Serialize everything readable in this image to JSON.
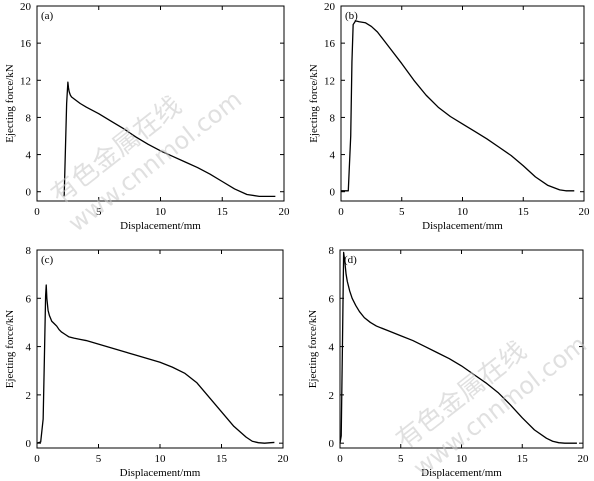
{
  "watermark": {
    "cn_text": "有色金属在线",
    "url_text": "www.cnnmol.com"
  },
  "chart_data": [
    {
      "type": "line",
      "panel": "(a)",
      "xlabel": "Displacement/mm",
      "ylabel": "Ejecting force/kN",
      "xlim": [
        0,
        20
      ],
      "ylim": [
        -1,
        20
      ],
      "xticks": [
        "0",
        "5",
        "10",
        "15",
        "20"
      ],
      "yticks": [
        "0",
        "4",
        "8",
        "12",
        "16",
        "20"
      ],
      "series": [
        {
          "x": [
            2.2,
            2.3,
            2.4,
            2.5,
            2.55,
            2.6,
            2.7,
            2.8,
            3.0,
            3.5,
            4,
            5,
            6,
            7,
            8,
            9,
            10,
            11,
            12,
            13,
            14,
            15,
            16,
            17,
            18,
            19,
            19.3
          ],
          "y": [
            -0.5,
            4.5,
            9.5,
            11.8,
            11.2,
            10.8,
            10.4,
            10.2,
            10.0,
            9.5,
            9.1,
            8.4,
            7.6,
            6.8,
            5.9,
            5.1,
            4.4,
            3.8,
            3.2,
            2.6,
            1.9,
            1.1,
            0.3,
            -0.3,
            -0.5,
            -0.5,
            -0.5
          ]
        }
      ]
    },
    {
      "type": "line",
      "panel": "(b)",
      "xlabel": "Displacement/mm",
      "ylabel": "Ejecting force/kN",
      "xlim": [
        0,
        20
      ],
      "ylim": [
        -1,
        20
      ],
      "xticks": [
        "0",
        "5",
        "10",
        "15",
        "20"
      ],
      "yticks": [
        "0",
        "4",
        "8",
        "12",
        "16",
        "20"
      ],
      "series": [
        {
          "x": [
            0,
            0.6,
            0.8,
            0.9,
            1.0,
            1.2,
            1.5,
            2.0,
            2.5,
            3,
            4,
            5,
            6,
            7,
            8,
            9,
            10,
            11,
            12,
            13,
            14,
            15,
            16,
            17,
            18,
            18.5,
            19.0,
            19.2
          ],
          "y": [
            0.1,
            0.1,
            6.0,
            14.0,
            18.0,
            18.4,
            18.3,
            18.2,
            17.8,
            17.2,
            15.5,
            13.8,
            12.0,
            10.4,
            9.1,
            8.1,
            7.3,
            6.5,
            5.7,
            4.8,
            3.9,
            2.8,
            1.6,
            0.7,
            0.2,
            0.1,
            0.1,
            0.1
          ]
        }
      ]
    },
    {
      "type": "line",
      "panel": "(c)",
      "xlabel": "Displacement/mm",
      "ylabel": "Ejecting force/kN",
      "xlim": [
        0,
        20
      ],
      "ylim": [
        -0.2,
        8
      ],
      "xticks": [
        "0",
        "5",
        "10",
        "15",
        "20"
      ],
      "yticks": [
        "0",
        "2",
        "4",
        "6",
        "8"
      ],
      "series": [
        {
          "x": [
            0,
            0.3,
            0.5,
            0.6,
            0.7,
            0.75,
            0.8,
            0.9,
            1.0,
            1.2,
            1.4,
            1.6,
            1.8,
            2.0,
            2.3,
            2.6,
            3.0,
            3.5,
            4,
            5,
            6,
            7,
            8,
            9,
            10,
            11,
            12,
            13,
            14,
            15,
            16,
            17,
            17.5,
            18,
            18.5,
            19,
            19.3
          ],
          "y": [
            0,
            0.05,
            1.0,
            3.5,
            6.1,
            6.55,
            6.0,
            5.5,
            5.3,
            5.05,
            4.95,
            4.85,
            4.7,
            4.6,
            4.5,
            4.4,
            4.35,
            4.3,
            4.25,
            4.1,
            3.95,
            3.8,
            3.65,
            3.5,
            3.35,
            3.15,
            2.9,
            2.5,
            1.9,
            1.3,
            0.7,
            0.25,
            0.08,
            0.02,
            0.0,
            0.02,
            0.03
          ]
        }
      ]
    },
    {
      "type": "line",
      "panel": "(d)",
      "xlabel": "Displacement/mm",
      "ylabel": "Ejecting force/kN",
      "xlim": [
        0,
        20
      ],
      "ylim": [
        -0.2,
        8
      ],
      "xticks": [
        "0",
        "5",
        "10",
        "15",
        "20"
      ],
      "yticks": [
        "0",
        "2",
        "4",
        "6",
        "8"
      ],
      "series": [
        {
          "x": [
            0,
            0.1,
            0.2,
            0.3,
            0.4,
            0.5,
            0.6,
            0.8,
            1.0,
            1.3,
            1.6,
            2.0,
            2.5,
            3,
            4,
            5,
            6,
            7,
            8,
            9,
            10,
            11,
            12,
            13,
            14,
            15,
            16,
            17,
            17.5,
            18,
            18.5,
            19,
            19.5
          ],
          "y": [
            0,
            0.3,
            4.0,
            7.9,
            7.5,
            7.0,
            6.7,
            6.3,
            6.0,
            5.7,
            5.45,
            5.2,
            5.0,
            4.85,
            4.65,
            4.45,
            4.25,
            4.0,
            3.75,
            3.5,
            3.2,
            2.85,
            2.5,
            2.1,
            1.6,
            1.05,
            0.55,
            0.2,
            0.08,
            0.02,
            0.0,
            0.0,
            0.0
          ]
        }
      ]
    }
  ]
}
